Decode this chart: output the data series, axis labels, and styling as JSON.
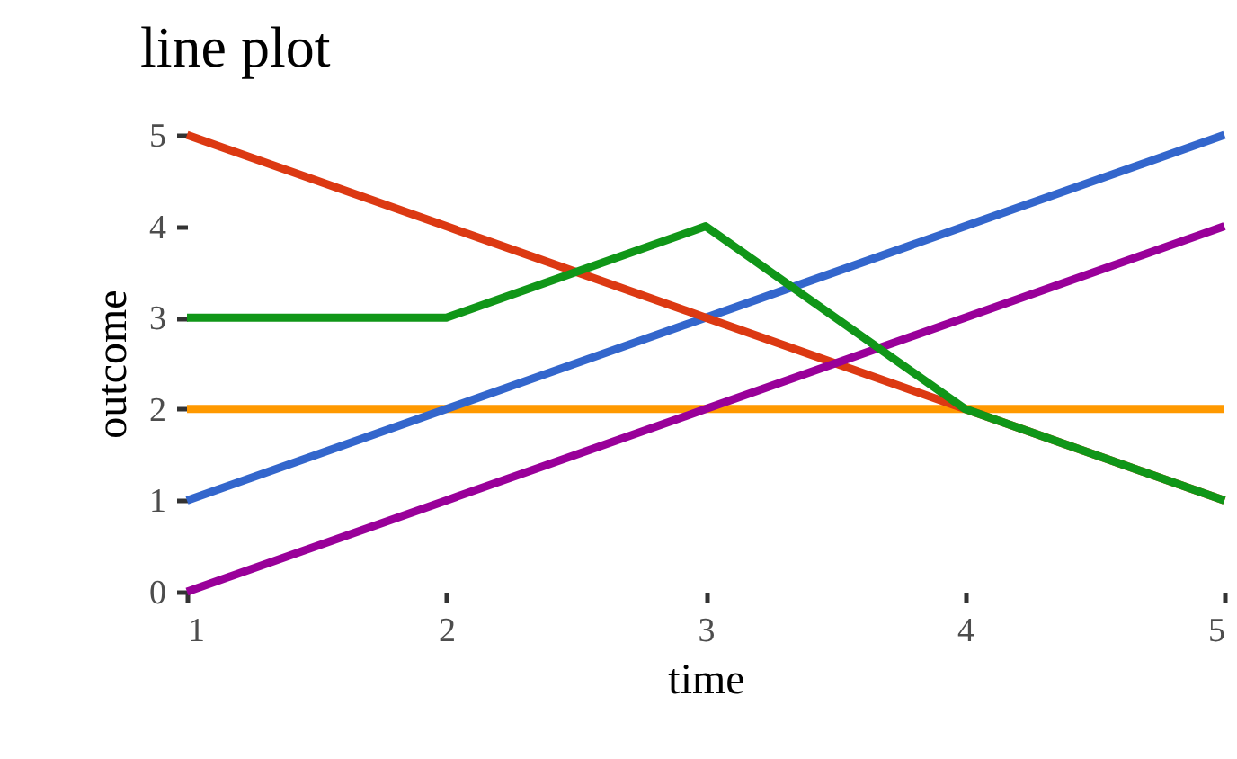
{
  "chart_data": {
    "type": "line",
    "title": "line plot",
    "xlabel": "time",
    "ylabel": "outcome",
    "x": [
      1,
      2,
      3,
      4,
      5
    ],
    "xlim": [
      1,
      5
    ],
    "ylim": [
      0,
      5
    ],
    "xticks": [
      1,
      2,
      3,
      4,
      5
    ],
    "yticks": [
      0,
      1,
      2,
      3,
      4,
      5
    ],
    "grid": false,
    "legend": false,
    "marker": "none",
    "line_style": "solid",
    "series": [
      {
        "color": "#ff9900",
        "values": [
          2,
          2,
          2,
          2,
          2
        ]
      },
      {
        "color": "#3366cc",
        "values": [
          1,
          2,
          3,
          4,
          5
        ]
      },
      {
        "color": "#dc3912",
        "values": [
          5,
          4,
          3,
          2,
          1
        ]
      },
      {
        "color": "#990099",
        "values": [
          0,
          1,
          2,
          3,
          4
        ]
      },
      {
        "color": "#109618",
        "values": [
          3,
          3,
          4,
          2,
          1
        ]
      }
    ]
  }
}
